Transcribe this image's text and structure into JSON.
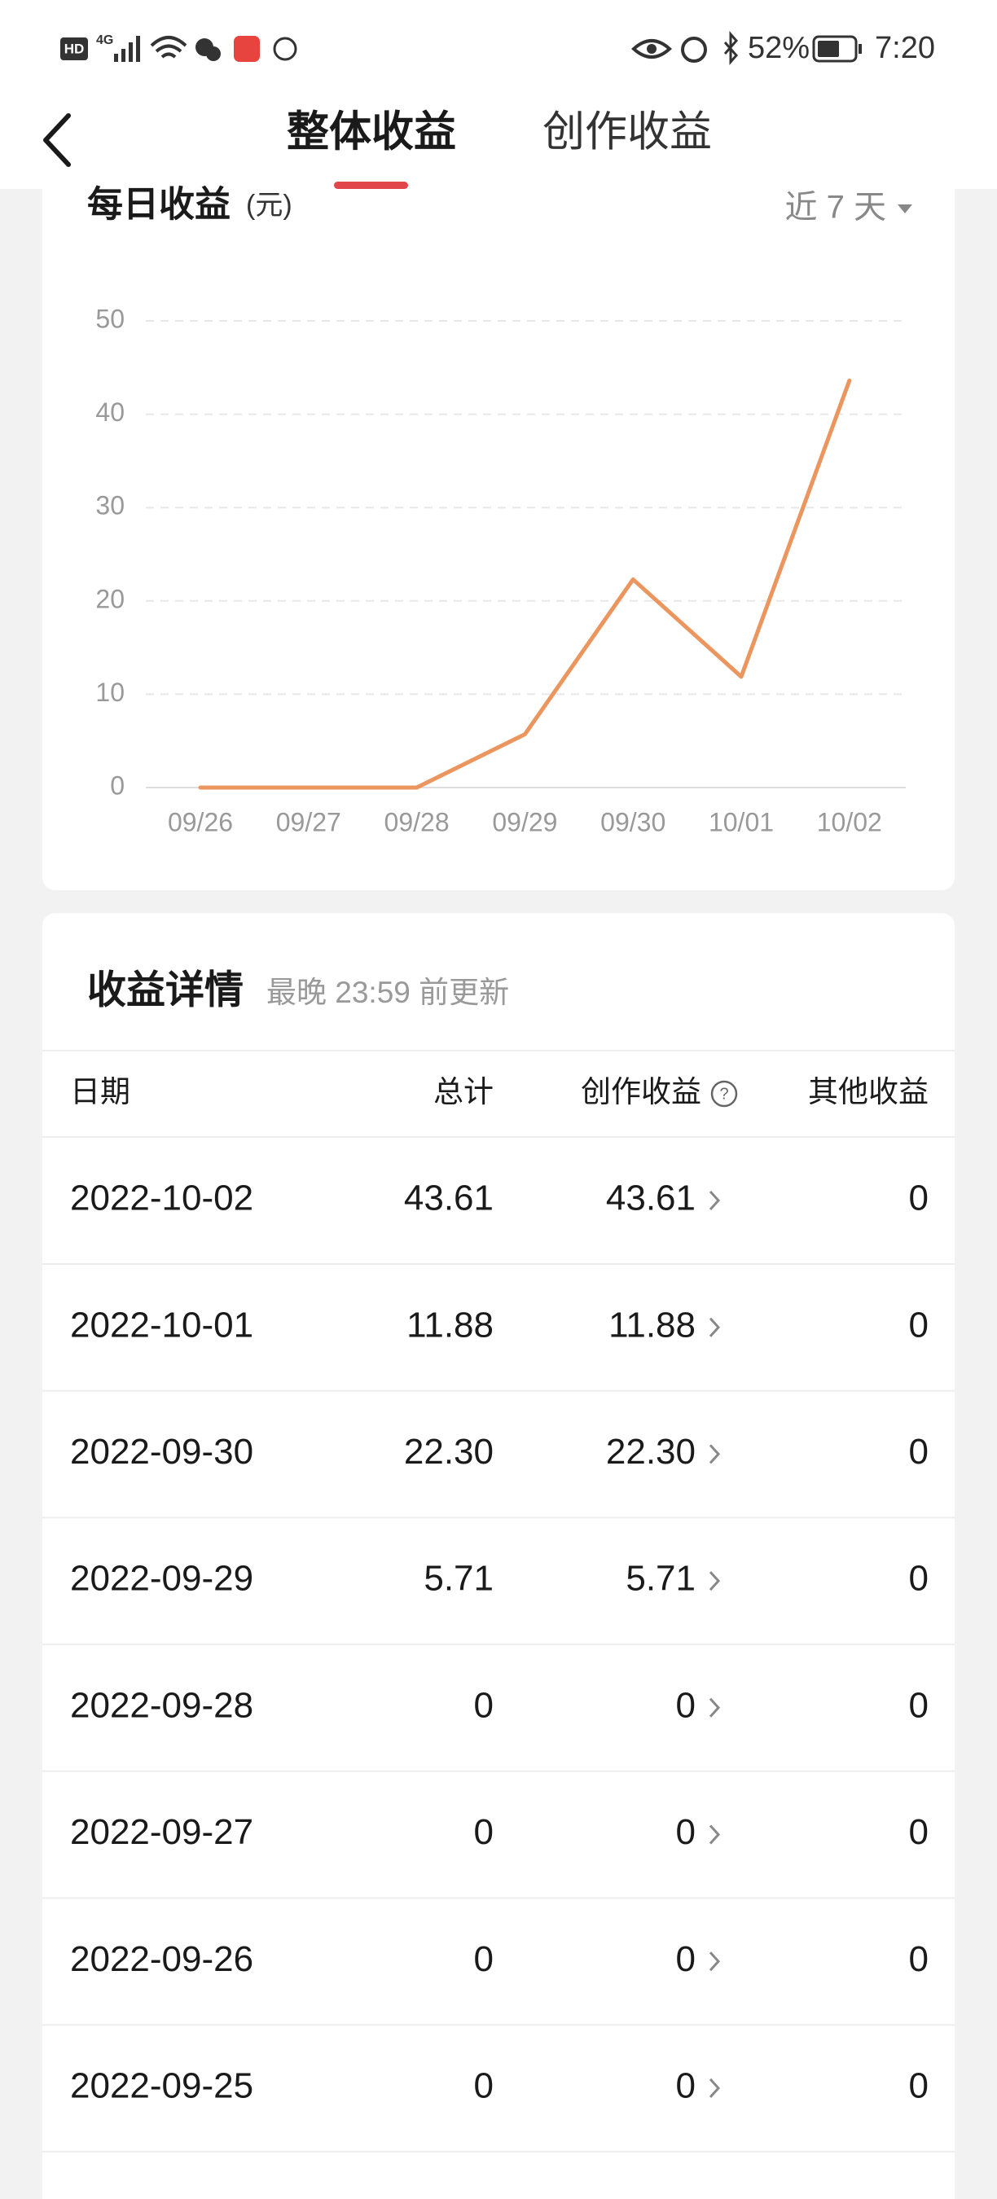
{
  "status_bar": {
    "hd": "HD",
    "network": "4G",
    "battery": "52%",
    "time": "7:20"
  },
  "tabs": [
    "整体收益",
    "创作收益"
  ],
  "chart_data": {
    "type": "line",
    "title": "每日收益",
    "unit": "(元)",
    "range_selector": "近 7 天",
    "categories": [
      "09/26",
      "09/27",
      "09/28",
      "09/29",
      "09/30",
      "10/01",
      "10/02"
    ],
    "values": [
      0,
      0,
      0,
      5.71,
      22.3,
      11.88,
      43.61
    ],
    "color": "#eb955f",
    "ylim": [
      0,
      50
    ],
    "yticks": [
      0,
      10,
      20,
      30,
      40,
      50
    ],
    "grid": true
  },
  "details": {
    "title": "收益详情",
    "subtitle": "最晚 23:59 前更新",
    "header": [
      "日期",
      "总计",
      "创作收益",
      "其他收益"
    ],
    "rows": [
      [
        "2022-10-02",
        "43.61",
        "43.61",
        "0"
      ],
      [
        "2022-10-01",
        "11.88",
        "11.88",
        "0"
      ],
      [
        "2022-09-30",
        "22.30",
        "22.30",
        "0"
      ],
      [
        "2022-09-29",
        "5.71",
        "5.71",
        "0"
      ],
      [
        "2022-09-28",
        "0",
        "0",
        "0"
      ],
      [
        "2022-09-27",
        "0",
        "0",
        "0"
      ],
      [
        "2022-09-26",
        "0",
        "0",
        "0"
      ],
      [
        "2022-09-25",
        "0",
        "0",
        "0"
      ]
    ]
  }
}
